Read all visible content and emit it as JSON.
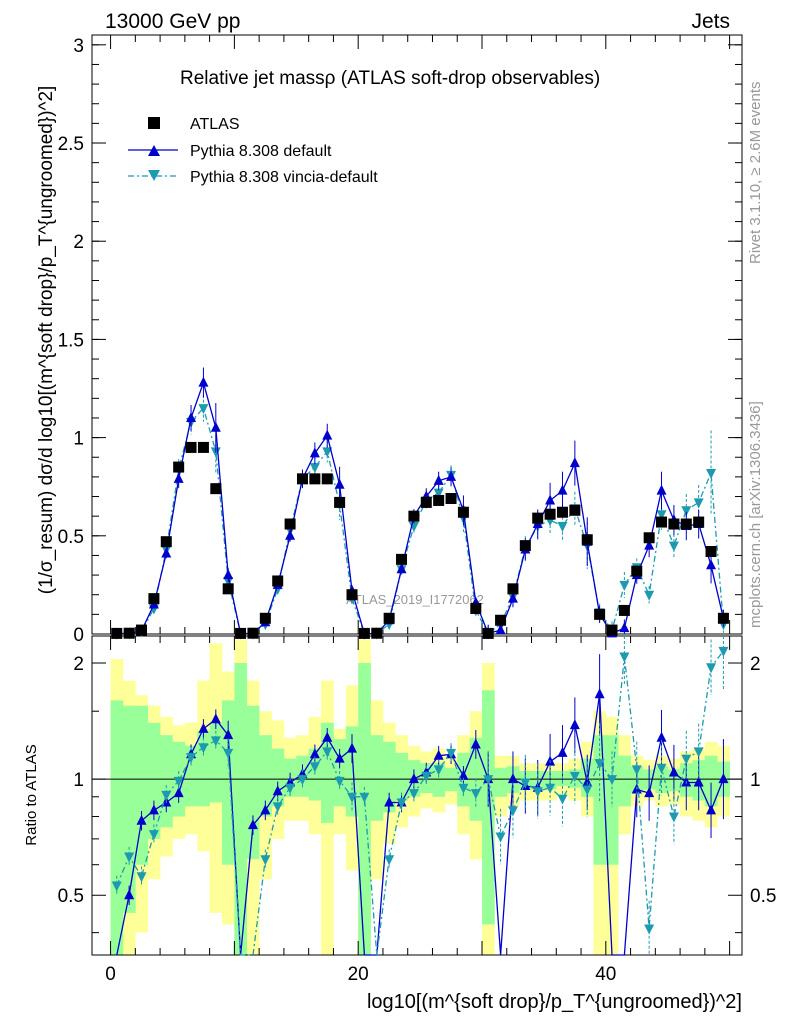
{
  "header": {
    "left": "13000 GeV pp",
    "right": "Jets"
  },
  "side_text": {
    "top": "Rivet 3.1.10, ≥ 2.6M events",
    "bottom": "mcplots.cern.ch [arXiv:1306.3436]"
  },
  "watermark": "ATLAS_2019_I1772062",
  "chart_data": {
    "type": "scatter",
    "title": "Relative jet massρ (ATLAS soft-drop observables)",
    "xlabel": "log10[(m^{soft drop}/p_T^{ungroomed})^2]",
    "ylabel": "(1/σ_resum) dσ/d log10[(m^{soft drop}/p_T^{ungroomed})^2]",
    "ratio_ylabel": "Ratio to ATLAS",
    "xlim": [
      -1.5,
      51
    ],
    "ylim": [
      0,
      3.05
    ],
    "ratio_ylim": [
      0.35,
      2.35
    ],
    "ratio_log": true,
    "x_ticks": [
      0,
      20,
      40
    ],
    "y_ticks": [
      0,
      0.5,
      1,
      1.5,
      2,
      2.5,
      3
    ],
    "ratio_ticks": [
      0.5,
      1,
      2
    ],
    "legend_position": "top-left",
    "bins": 50,
    "series": [
      {
        "name": "ATLAS",
        "color": "#000000",
        "marker": "square",
        "values": [
          0.003,
          0.004,
          0.02,
          0.18,
          0.47,
          0.85,
          0.95,
          0.95,
          0.74,
          0.23,
          0.003,
          0.004,
          0.08,
          0.27,
          0.56,
          0.79,
          0.79,
          0.79,
          0.67,
          0.2,
          0.003,
          0.004,
          0.08,
          0.38,
          0.6,
          0.67,
          0.68,
          0.69,
          0.62,
          0.13,
          0.003,
          0.07,
          0.23,
          0.45,
          0.59,
          0.61,
          0.62,
          0.63,
          0.48,
          0.1,
          0.02,
          0.12,
          0.32,
          0.49,
          0.57,
          0.56,
          0.56,
          0.57,
          0.42,
          0.08
        ]
      },
      {
        "name": "Pythia 8.308 default",
        "color": "#0000cc",
        "marker": "triangle-up",
        "values": [
          0.003,
          0.002,
          0.016,
          0.15,
          0.41,
          0.79,
          1.1,
          1.28,
          1.05,
          0.3,
          0.002,
          0.003,
          0.06,
          0.25,
          0.5,
          0.79,
          0.92,
          1.01,
          0.76,
          0.22,
          0.001,
          0.003,
          0.07,
          0.33,
          0.6,
          0.7,
          0.78,
          0.8,
          0.63,
          0.16,
          0.003,
          0.02,
          0.18,
          0.43,
          0.56,
          0.68,
          0.73,
          0.87,
          0.47,
          0.1,
          0.003,
          0.03,
          0.3,
          0.45,
          0.73,
          0.58,
          0.55,
          0.56,
          0.35,
          0.08
        ]
      },
      {
        "name": "Pythia 8.308 vincia-default",
        "color": "#1c9bb0",
        "marker": "triangle-down",
        "values": [
          0.0015,
          0.003,
          0.013,
          0.13,
          0.43,
          0.84,
          1.08,
          1.15,
          0.93,
          0.27,
          0.002,
          0.002,
          0.05,
          0.23,
          0.53,
          0.79,
          0.85,
          0.93,
          0.66,
          0.18,
          0.001,
          0.002,
          0.05,
          0.33,
          0.55,
          0.68,
          0.72,
          0.81,
          0.59,
          0.12,
          0.003,
          0.05,
          0.19,
          0.44,
          0.55,
          0.58,
          0.55,
          0.64,
          0.45,
          0.11,
          0.02,
          0.25,
          0.34,
          0.2,
          0.61,
          0.45,
          0.63,
          0.67,
          0.82,
          0.05
        ]
      }
    ],
    "ratio_series": [
      {
        "name": "Pythia 8.308 default",
        "values": [
          0.2,
          0.5,
          0.78,
          0.83,
          0.87,
          0.92,
          1.16,
          1.35,
          1.43,
          1.3,
          0.2,
          0.76,
          0.83,
          0.93,
          0.98,
          1.03,
          1.16,
          1.28,
          1.13,
          1.2,
          0.2,
          0.2,
          0.87,
          0.87,
          1.0,
          1.04,
          1.15,
          1.16,
          1.02,
          1.23,
          1.0,
          0.29,
          1.0,
          0.96,
          0.95,
          1.11,
          1.17,
          1.38,
          0.98,
          1.66,
          0.2,
          0.25,
          0.94,
          0.92,
          1.28,
          1.04,
          0.98,
          0.98,
          0.83,
          1.0
        ]
      },
      {
        "name": "Pythia 8.308 vincia-default",
        "values": [
          0.53,
          0.63,
          0.56,
          0.72,
          0.91,
          0.99,
          1.14,
          1.21,
          1.26,
          1.17,
          0.2,
          0.2,
          0.62,
          0.85,
          0.95,
          1.0,
          1.08,
          1.18,
          0.99,
          0.9,
          0.9,
          0.2,
          0.62,
          0.87,
          0.92,
          1.02,
          1.06,
          1.17,
          0.95,
          0.92,
          1.0,
          0.71,
          0.83,
          0.98,
          0.93,
          0.95,
          0.89,
          1.02,
          0.94,
          1.1,
          1.0,
          2.08,
          1.06,
          0.41,
          1.07,
          0.8,
          1.13,
          1.18,
          1.95,
          2.15
        ]
      }
    ],
    "ratio_band_inner": [
      [
        0.35,
        1.6
      ],
      [
        0.45,
        1.55
      ],
      [
        0.6,
        1.55
      ],
      [
        0.7,
        1.4
      ],
      [
        0.75,
        1.3
      ],
      [
        0.8,
        1.25
      ],
      [
        0.85,
        1.22
      ],
      [
        0.85,
        1.33
      ],
      [
        0.87,
        1.4
      ],
      [
        0.6,
        1.6
      ],
      [
        0.35,
        2.0
      ],
      [
        0.62,
        1.55
      ],
      [
        0.8,
        1.3
      ],
      [
        0.85,
        1.2
      ],
      [
        0.9,
        1.13
      ],
      [
        0.9,
        1.15
      ],
      [
        0.88,
        1.2
      ],
      [
        0.77,
        1.4
      ],
      [
        0.85,
        1.27
      ],
      [
        0.8,
        1.37
      ],
      [
        0.35,
        2.0
      ],
      [
        0.78,
        1.3
      ],
      [
        0.82,
        1.25
      ],
      [
        0.88,
        1.17
      ],
      [
        0.9,
        1.12
      ],
      [
        0.92,
        1.1
      ],
      [
        0.9,
        1.1
      ],
      [
        0.93,
        1.07
      ],
      [
        0.85,
        1.17
      ],
      [
        0.78,
        1.28
      ],
      [
        0.42,
        1.7
      ],
      [
        0.9,
        1.07
      ],
      [
        0.92,
        1.08
      ],
      [
        0.94,
        1.05
      ],
      [
        0.94,
        1.05
      ],
      [
        0.94,
        1.05
      ],
      [
        0.96,
        1.05
      ],
      [
        0.95,
        1.06
      ],
      [
        0.9,
        1.13
      ],
      [
        0.6,
        1.3
      ],
      [
        0.6,
        1.3
      ],
      [
        0.85,
        1.15
      ],
      [
        0.92,
        1.08
      ],
      [
        0.94,
        1.06
      ],
      [
        0.92,
        1.08
      ],
      [
        0.93,
        1.06
      ],
      [
        0.9,
        1.1
      ],
      [
        0.88,
        1.12
      ],
      [
        0.85,
        1.15
      ],
      [
        0.9,
        1.11
      ]
    ],
    "ratio_band_outer": [
      [
        0.35,
        2.05
      ],
      [
        0.35,
        1.8
      ],
      [
        0.4,
        1.65
      ],
      [
        0.55,
        1.55
      ],
      [
        0.63,
        1.45
      ],
      [
        0.7,
        1.38
      ],
      [
        0.72,
        1.4
      ],
      [
        0.65,
        1.8
      ],
      [
        0.45,
        2.25
      ],
      [
        0.42,
        1.9
      ],
      [
        0.35,
        2.3
      ],
      [
        0.35,
        1.8
      ],
      [
        0.55,
        1.5
      ],
      [
        0.7,
        1.42
      ],
      [
        0.78,
        1.28
      ],
      [
        0.78,
        1.3
      ],
      [
        0.72,
        1.45
      ],
      [
        0.35,
        1.8
      ],
      [
        0.72,
        1.35
      ],
      [
        0.58,
        1.75
      ],
      [
        0.35,
        2.3
      ],
      [
        0.55,
        1.6
      ],
      [
        0.68,
        1.4
      ],
      [
        0.75,
        1.3
      ],
      [
        0.8,
        1.22
      ],
      [
        0.84,
        1.18
      ],
      [
        0.82,
        1.2
      ],
      [
        0.86,
        1.14
      ],
      [
        0.72,
        1.3
      ],
      [
        0.62,
        1.5
      ],
      [
        0.35,
        2.0
      ],
      [
        0.8,
        1.15
      ],
      [
        0.85,
        1.15
      ],
      [
        0.88,
        1.1
      ],
      [
        0.88,
        1.1
      ],
      [
        0.88,
        1.1
      ],
      [
        0.9,
        1.1
      ],
      [
        0.88,
        1.13
      ],
      [
        0.8,
        1.25
      ],
      [
        0.35,
        1.5
      ],
      [
        0.35,
        1.45
      ],
      [
        0.72,
        1.3
      ],
      [
        0.85,
        1.15
      ],
      [
        0.88,
        1.12
      ],
      [
        0.85,
        1.15
      ],
      [
        0.86,
        1.13
      ],
      [
        0.8,
        1.18
      ],
      [
        0.78,
        1.2
      ],
      [
        0.75,
        1.25
      ],
      [
        0.8,
        1.22
      ]
    ]
  }
}
